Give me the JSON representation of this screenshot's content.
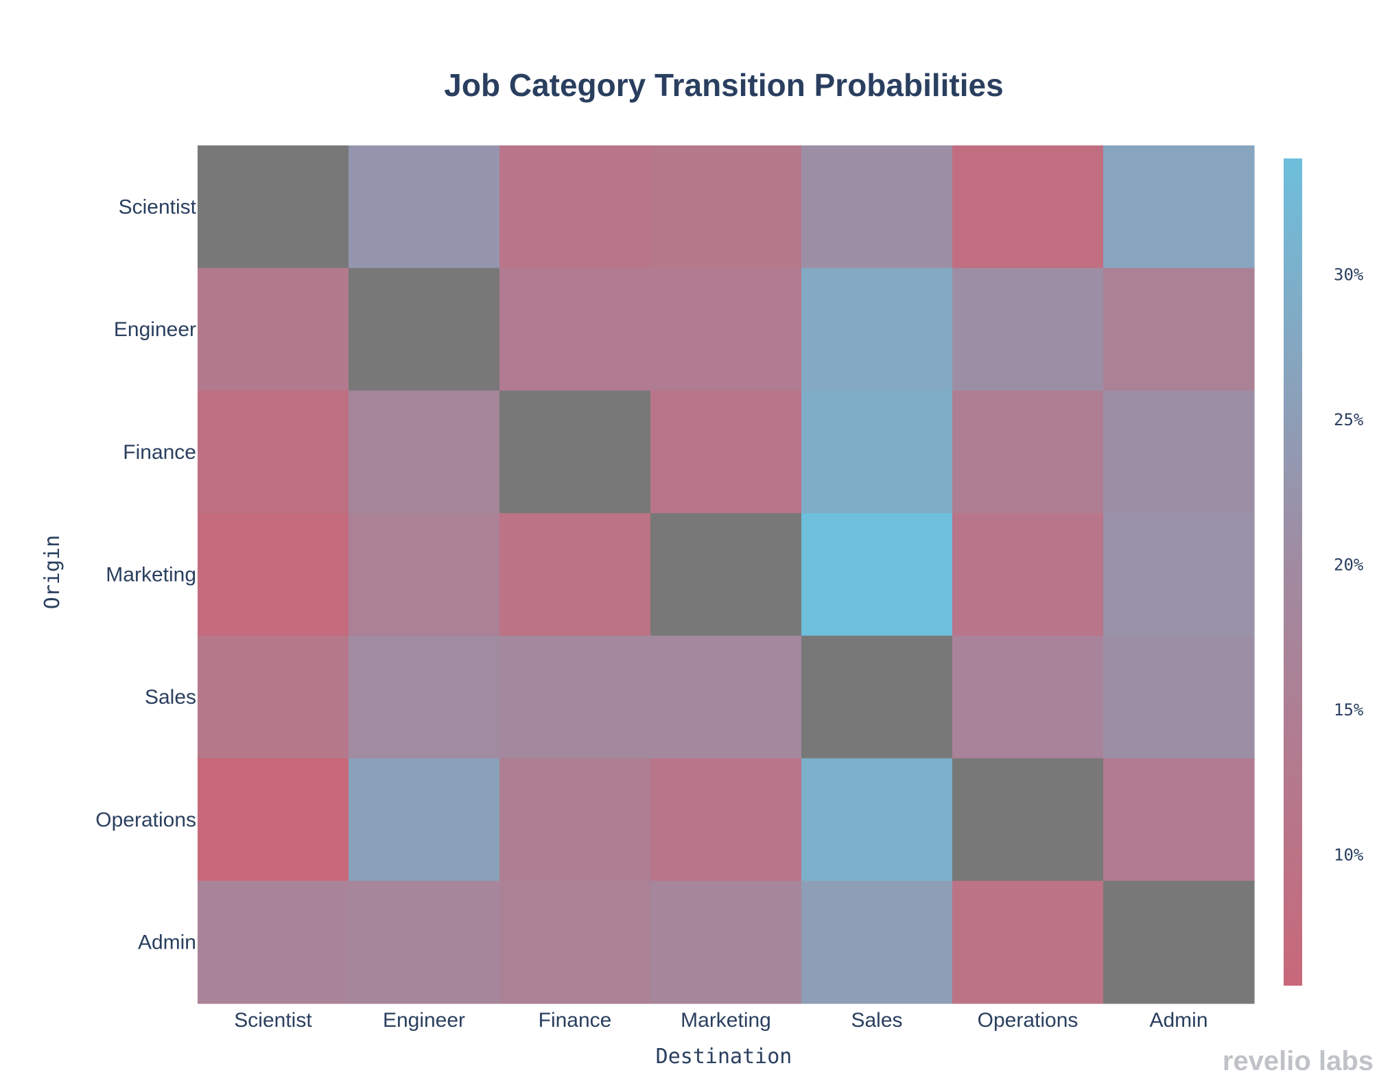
{
  "chart_data": {
    "type": "heatmap",
    "title": "Job Category Transition Probabilities",
    "xlabel": "Destination",
    "ylabel": "Origin",
    "x_categories": [
      "Scientist",
      "Engineer",
      "Finance",
      "Marketing",
      "Sales",
      "Operations",
      "Admin"
    ],
    "y_categories": [
      "Scientist",
      "Engineer",
      "Finance",
      "Marketing",
      "Sales",
      "Operations",
      "Admin"
    ],
    "values": [
      [
        null,
        23,
        11,
        12,
        21,
        8,
        27
      ],
      [
        13,
        null,
        14,
        14,
        28,
        21,
        16
      ],
      [
        9,
        18,
        null,
        11,
        29,
        15,
        21
      ],
      [
        7,
        16,
        10,
        null,
        34,
        11,
        22
      ],
      [
        12,
        20,
        19,
        19,
        null,
        17,
        21
      ],
      [
        6,
        26,
        15,
        11,
        30,
        null,
        14
      ],
      [
        17,
        18,
        16,
        18,
        25,
        10,
        null
      ]
    ],
    "missing_color": "#787878",
    "colorscale": {
      "low": "#c8687a",
      "mid": "#a18aa0",
      "high": "#6dbfdc"
    },
    "zmin": 5.5,
    "zmax": 34,
    "colorbar": {
      "ticks": [
        10,
        15,
        20,
        25,
        30
      ],
      "tick_labels": [
        "10%",
        "15%",
        "20%",
        "25%",
        "30%"
      ]
    }
  },
  "brand": "revelio labs",
  "colors": {
    "text": "#2a3f5f",
    "brand": "#bfc2c7"
  }
}
